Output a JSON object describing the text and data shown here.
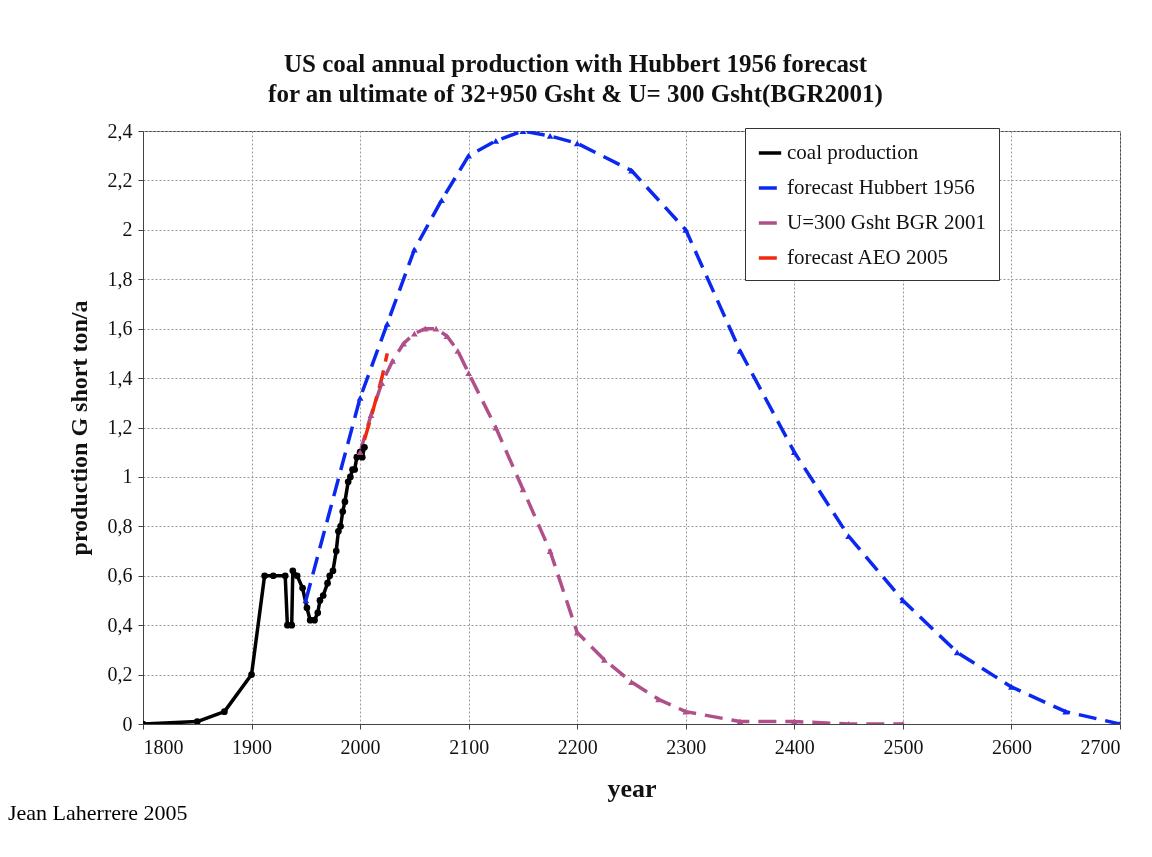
{
  "chart_data": {
    "type": "line",
    "title": [
      "US coal annual production with Hubbert 1956 forecast",
      "for an ultimate of 32+950 Gsht & U= 300 Gsht(BGR2001)"
    ],
    "xlabel": "year",
    "ylabel": "production G short ton/a",
    "annotations": [
      "Jean Laherrere 2005"
    ],
    "xlim": [
      1800,
      2700
    ],
    "xticks": [
      1800,
      1900,
      2000,
      2100,
      2200,
      2300,
      2400,
      2500,
      2600,
      2700
    ],
    "ylim": [
      0,
      2.4
    ],
    "yticks": [
      0,
      {
        "value": 0.2,
        "label": "0,2"
      },
      {
        "value": 0.4,
        "label": "0,4"
      },
      {
        "value": 0.6,
        "label": "0,6"
      },
      {
        "value": 0.8,
        "label": "0,8"
      },
      1,
      {
        "value": 1.2,
        "label": "1,2"
      },
      {
        "value": 1.4,
        "label": "1,4"
      },
      {
        "value": 1.6,
        "label": "1,6"
      },
      {
        "value": 1.8,
        "label": "1,8"
      },
      2,
      {
        "value": 2.2,
        "label": "2,2"
      },
      {
        "value": 2.4,
        "label": "2,4"
      }
    ],
    "grid": true,
    "legend": "top right",
    "series": [
      {
        "name": "coal production",
        "color": "#000000",
        "marker": "circle",
        "line_style": "solid",
        "x": [
          1800,
          1850,
          1875,
          1900,
          1912,
          1920,
          1931,
          1933,
          1937,
          1938,
          1942,
          1947,
          1951,
          1954,
          1958,
          1961,
          1963,
          1966,
          1970,
          1972,
          1975,
          1978,
          1980,
          1982,
          1984,
          1986,
          1989,
          1991,
          1993,
          1995,
          1997,
          2000,
          2002,
          2004
        ],
        "values": [
          0,
          0.01,
          0.05,
          0.2,
          0.6,
          0.6,
          0.6,
          0.4,
          0.4,
          0.62,
          0.6,
          0.55,
          0.47,
          0.42,
          0.42,
          0.45,
          0.5,
          0.52,
          0.57,
          0.6,
          0.62,
          0.7,
          0.78,
          0.8,
          0.86,
          0.9,
          0.98,
          1.0,
          1.03,
          1.03,
          1.08,
          1.1,
          1.08,
          1.12
        ]
      },
      {
        "name": "forecast Hubbert 1956",
        "color": "#0a28f0",
        "marker": "triangle",
        "line_style": "dashed",
        "x": [
          1950,
          2000,
          2025,
          2050,
          2075,
          2100,
          2125,
          2150,
          2175,
          2200,
          2250,
          2300,
          2350,
          2400,
          2450,
          2500,
          2550,
          2600,
          2650,
          2700
        ],
        "values": [
          0.5,
          1.32,
          1.62,
          1.92,
          2.12,
          2.3,
          2.36,
          2.4,
          2.38,
          2.35,
          2.24,
          2.0,
          1.51,
          1.1,
          0.76,
          0.5,
          0.29,
          0.15,
          0.05,
          0
        ]
      },
      {
        "name": "U=300 Gsht BGR 2001",
        "color": "#b0508a",
        "marker": "triangle",
        "line_style": "dashed",
        "x": [
          2000,
          2010,
          2020,
          2030,
          2040,
          2050,
          2060,
          2070,
          2080,
          2090,
          2100,
          2125,
          2150,
          2175,
          2200,
          2225,
          2250,
          2275,
          2300,
          2350,
          2400,
          2450,
          2500
        ],
        "values": [
          1.1,
          1.25,
          1.38,
          1.47,
          1.54,
          1.58,
          1.6,
          1.6,
          1.57,
          1.51,
          1.42,
          1.2,
          0.95,
          0.7,
          0.37,
          0.26,
          0.17,
          0.1,
          0.05,
          0.01,
          0.01,
          0,
          0
        ]
      },
      {
        "name": "forecast AEO 2005",
        "color": "#f02a10",
        "marker": "none",
        "line_style": "dashed",
        "x": [
          2004,
          2010,
          2015,
          2020,
          2025
        ],
        "values": [
          1.15,
          1.24,
          1.32,
          1.4,
          1.5
        ]
      }
    ]
  }
}
